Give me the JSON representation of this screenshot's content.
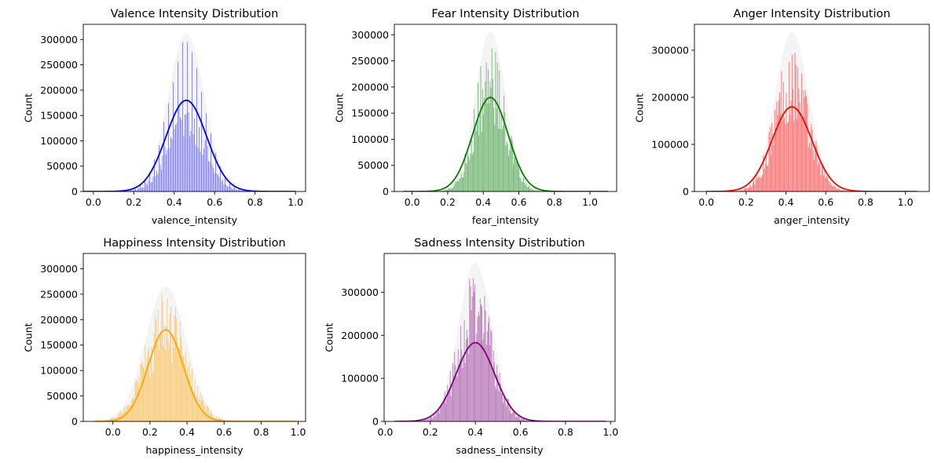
{
  "chart_data": [
    {
      "type": "histogram",
      "title": "Valence Intensity Distribution",
      "xlabel": "valence_intensity",
      "ylabel": "Count",
      "xlim": [
        -0.05,
        1.05
      ],
      "ylim": [
        0,
        330000
      ],
      "xticks": [
        0.0,
        0.2,
        0.4,
        0.6,
        0.8,
        1.0
      ],
      "xtick_labels": [
        "0.0",
        "0.2",
        "0.4",
        "0.6",
        "0.8",
        "1.0"
      ],
      "yticks": [
        0,
        50000,
        100000,
        150000,
        200000,
        250000,
        300000
      ],
      "ytick_labels": [
        "0",
        "50000",
        "100000",
        "150000",
        "200000",
        "250000",
        "300000"
      ],
      "color": "#0000ff",
      "data_range": [
        -0.05,
        1.0
      ],
      "kde_mean": 0.46,
      "kde_std": 0.1,
      "kde_peak": 180000,
      "hist_peak": 300000,
      "hist_width": 0.09,
      "style": "comb",
      "bins": 180
    },
    {
      "type": "histogram",
      "title": "Fear Intensity Distribution",
      "xlabel": "fear_intensity",
      "ylabel": "Count",
      "xlim": [
        -0.1,
        1.15
      ],
      "ylim": [
        0,
        320000
      ],
      "xticks": [
        0.0,
        0.2,
        0.4,
        0.6,
        0.8,
        1.0
      ],
      "xtick_labels": [
        "0.0",
        "0.2",
        "0.4",
        "0.6",
        "0.8",
        "1.0"
      ],
      "yticks": [
        0,
        50000,
        100000,
        150000,
        200000,
        250000,
        300000
      ],
      "ytick_labels": [
        "0",
        "50000",
        "100000",
        "150000",
        "200000",
        "250000",
        "300000"
      ],
      "color": "#008000",
      "data_range": [
        -0.05,
        1.1
      ],
      "kde_mean": 0.44,
      "kde_std": 0.1,
      "kde_peak": 180000,
      "hist_peak": 295000,
      "hist_width": 0.085,
      "style": "dense",
      "bins": 220
    },
    {
      "type": "histogram",
      "title": "Anger Intensity Distribution",
      "xlabel": "anger_intensity",
      "ylabel": "Count",
      "xlim": [
        -0.06,
        1.12
      ],
      "ylim": [
        0,
        355000
      ],
      "xticks": [
        0.0,
        0.2,
        0.4,
        0.6,
        0.8,
        1.0
      ],
      "xtick_labels": [
        "0.0",
        "0.2",
        "0.4",
        "0.6",
        "0.8",
        "1.0"
      ],
      "yticks": [
        0,
        100000,
        200000,
        300000
      ],
      "ytick_labels": [
        "0",
        "100000",
        "200000",
        "300000"
      ],
      "color": "#ff0000",
      "data_range": [
        0.0,
        1.06
      ],
      "kde_mean": 0.43,
      "kde_std": 0.1,
      "kde_peak": 180000,
      "hist_peak": 325000,
      "hist_width": 0.085,
      "style": "dense",
      "bins": 220
    },
    {
      "type": "histogram",
      "title": "Happiness Intensity Distribution",
      "xlabel": "happiness_intensity",
      "ylabel": "Count",
      "xlim": [
        -0.16,
        1.04
      ],
      "ylim": [
        0,
        330000
      ],
      "xticks": [
        0.0,
        0.2,
        0.4,
        0.6,
        0.8,
        1.0
      ],
      "xtick_labels": [
        "0.0",
        "0.2",
        "0.4",
        "0.6",
        "0.8",
        "1.0"
      ],
      "yticks": [
        0,
        50000,
        100000,
        150000,
        200000,
        250000,
        300000
      ],
      "ytick_labels": [
        "0",
        "50000",
        "100000",
        "150000",
        "200000",
        "250000",
        "300000"
      ],
      "color": "#ffa500",
      "data_range": [
        -0.1,
        0.99
      ],
      "kde_mean": 0.285,
      "kde_std": 0.095,
      "kde_peak": 180000,
      "hist_peak": 255000,
      "hist_width": 0.11,
      "style": "dense",
      "bins": 220
    },
    {
      "type": "histogram",
      "title": "Sadness Intensity Distribution",
      "xlabel": "sadness_intensity",
      "ylabel": "Count",
      "xlim": [
        -0.005,
        1.02
      ],
      "ylim": [
        0,
        390000
      ],
      "xticks": [
        0.0,
        0.2,
        0.4,
        0.6,
        0.8,
        1.0
      ],
      "xtick_labels": [
        "0.0",
        "0.2",
        "0.4",
        "0.6",
        "0.8",
        "1.0"
      ],
      "yticks": [
        0,
        100000,
        200000,
        300000
      ],
      "ytick_labels": [
        "0",
        "100000",
        "200000",
        "300000"
      ],
      "color": "#800080",
      "data_range": [
        0.04,
        0.98
      ],
      "kde_mean": 0.4,
      "kde_std": 0.085,
      "kde_peak": 183000,
      "hist_peak": 355000,
      "hist_width": 0.075,
      "style": "dense",
      "bins": 240
    }
  ]
}
